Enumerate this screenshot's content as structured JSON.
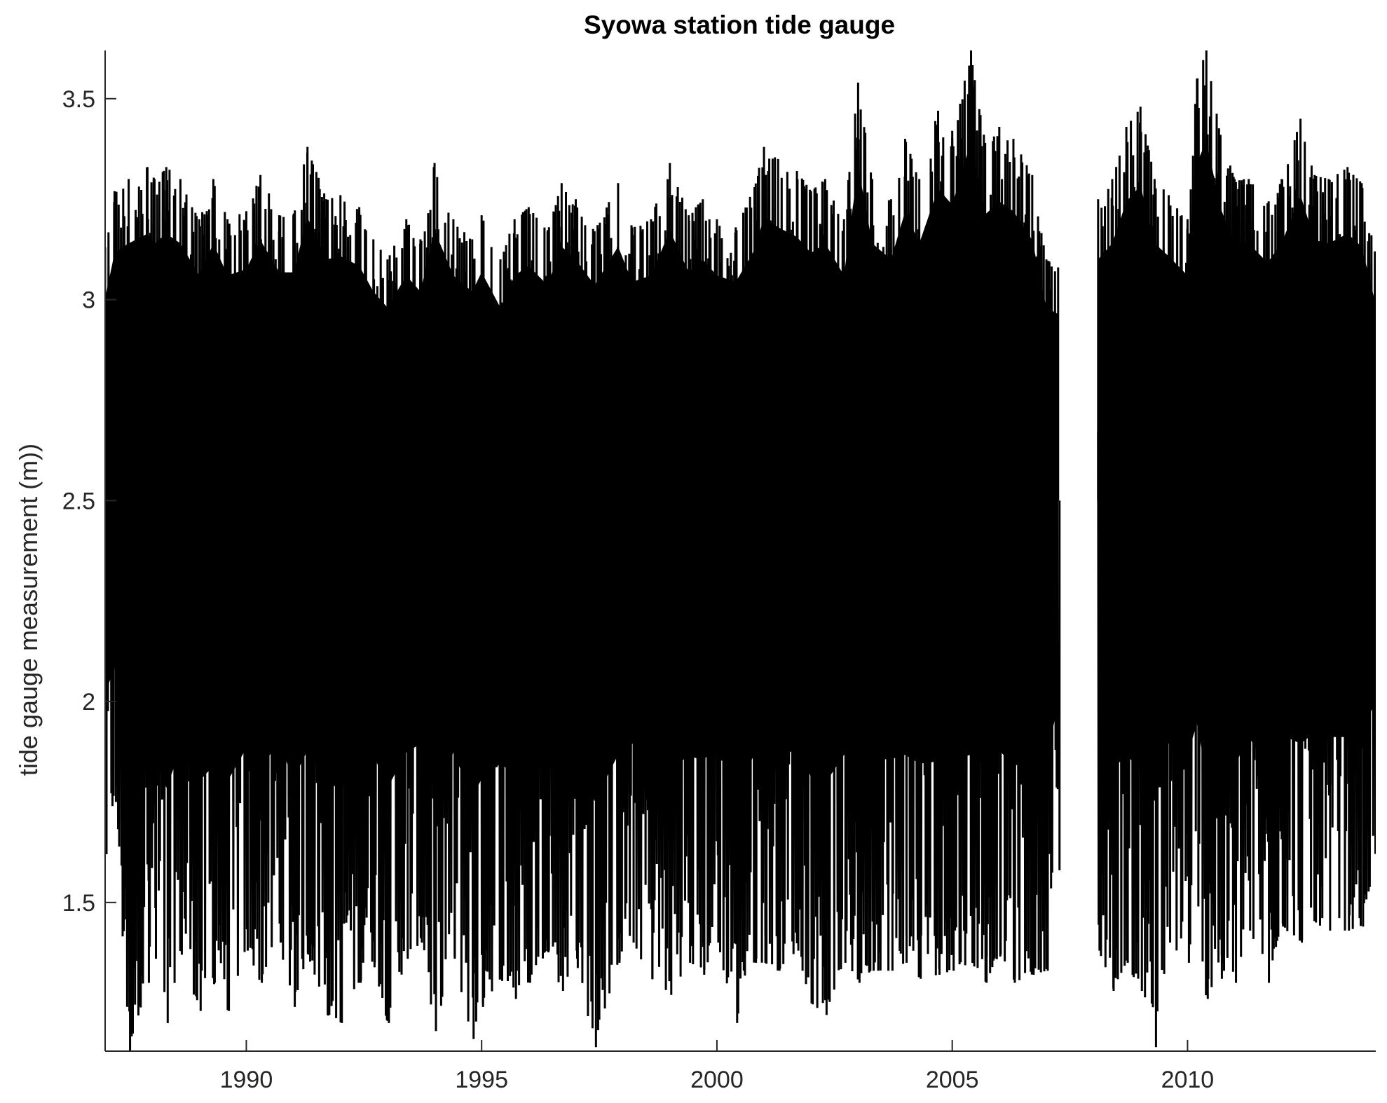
{
  "chart_data": {
    "type": "line",
    "title": "Syowa station tide gauge",
    "xlabel": "",
    "ylabel": "tide gauge measurement (m))",
    "x_range": [
      1987.0,
      2014.0
    ],
    "y_range": [
      1.13,
      3.62
    ],
    "x_ticks": [
      1990,
      1995,
      2000,
      2005,
      2010
    ],
    "x_tick_labels": [
      "1990",
      "1995",
      "2000",
      "2005",
      "2010"
    ],
    "y_ticks": [
      1.5,
      2.0,
      2.5,
      3.0,
      3.5
    ],
    "y_tick_labels": [
      "1.5",
      "2",
      "2.5",
      "3",
      "3.5"
    ],
    "grid": false,
    "legend": "none",
    "data_gap": [
      2007.25,
      2008.1
    ],
    "series": [
      {
        "color": "#000000",
        "x": [
          1987.0,
          1987.2,
          1987.5,
          1987.9,
          1988.05,
          1988.3,
          1988.6,
          1989.0,
          1989.3,
          1989.6,
          1990.0,
          1990.3,
          1990.7,
          1991.0,
          1991.3,
          1991.7,
          1992.0,
          1992.4,
          1992.7,
          1993.0,
          1993.4,
          1993.7,
          1994.0,
          1994.4,
          1994.8,
          1995.0,
          1995.4,
          1995.7,
          1996.0,
          1996.4,
          1996.7,
          1997.0,
          1997.4,
          1997.9,
          1998.2,
          1998.6,
          1999.0,
          1999.4,
          1999.7,
          2000.0,
          2000.4,
          2000.8,
          2001.0,
          2001.3,
          2001.7,
          2002.0,
          2002.3,
          2002.7,
          2003.0,
          2003.3,
          2003.7,
          2004.0,
          2004.3,
          2004.7,
          2005.0,
          2005.4,
          2005.7,
          2006.0,
          2006.3,
          2006.7,
          2007.0,
          2007.25,
          2008.1,
          2008.4,
          2008.7,
          2009.0,
          2009.3,
          2009.6,
          2010.0,
          2010.2,
          2010.4,
          2010.7,
          2011.0,
          2011.3,
          2011.7,
          2012.0,
          2012.4,
          2012.7,
          2013.0,
          2013.4,
          2013.7,
          2014.0
        ],
        "upper": [
          3.13,
          3.27,
          3.3,
          3.33,
          3.3,
          3.33,
          3.3,
          3.2,
          3.3,
          3.2,
          3.22,
          3.31,
          3.21,
          3.21,
          3.38,
          3.25,
          3.26,
          3.23,
          3.15,
          3.1,
          3.2,
          3.15,
          3.34,
          3.2,
          3.15,
          3.21,
          3.1,
          3.2,
          3.23,
          3.17,
          3.29,
          3.25,
          3.17,
          3.29,
          3.18,
          3.2,
          3.34,
          3.21,
          3.25,
          3.2,
          3.18,
          3.28,
          3.38,
          3.35,
          3.32,
          3.27,
          3.3,
          3.2,
          3.54,
          3.3,
          3.25,
          3.4,
          3.3,
          3.47,
          3.42,
          3.62,
          3.39,
          3.43,
          3.4,
          3.31,
          3.1,
          3.08,
          3.25,
          3.3,
          3.43,
          3.48,
          3.3,
          3.26,
          3.2,
          3.55,
          3.62,
          3.41,
          3.3,
          3.3,
          3.24,
          3.3,
          3.45,
          3.31,
          3.3,
          3.33,
          3.29,
          3.11
        ],
        "lower": [
          1.62,
          1.75,
          1.13,
          1.3,
          1.36,
          1.2,
          1.37,
          1.23,
          1.3,
          1.23,
          1.38,
          1.3,
          1.4,
          1.24,
          1.37,
          1.22,
          1.2,
          1.3,
          1.35,
          1.2,
          1.36,
          1.4,
          1.18,
          1.36,
          1.16,
          1.24,
          1.31,
          1.26,
          1.3,
          1.38,
          1.28,
          1.36,
          1.14,
          1.35,
          1.4,
          1.31,
          1.27,
          1.35,
          1.32,
          1.4,
          1.2,
          1.35,
          1.35,
          1.33,
          1.38,
          1.25,
          1.22,
          1.35,
          1.3,
          1.33,
          1.33,
          1.35,
          1.31,
          1.32,
          1.33,
          1.35,
          1.3,
          1.37,
          1.3,
          1.32,
          1.33,
          1.58,
          1.38,
          1.28,
          1.35,
          1.28,
          1.14,
          1.4,
          1.35,
          1.49,
          1.26,
          1.31,
          1.3,
          1.43,
          1.3,
          1.44,
          1.4,
          1.45,
          1.43,
          1.43,
          1.44,
          1.6
        ]
      }
    ]
  }
}
